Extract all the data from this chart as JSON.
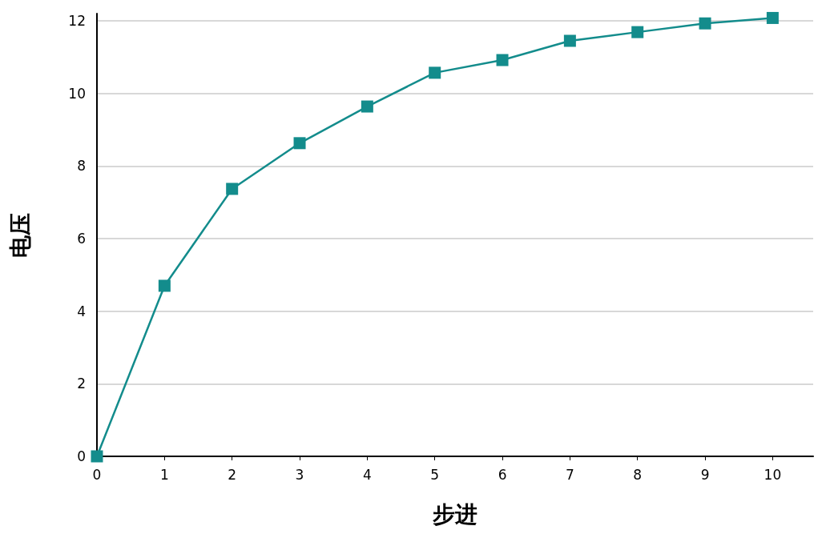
{
  "chart_data": {
    "type": "line",
    "xlabel": "步进",
    "ylabel": "电压",
    "x": [
      0,
      1,
      2,
      3,
      4,
      5,
      6,
      7,
      8,
      9,
      10
    ],
    "series": [
      {
        "color": "#138c8c",
        "values": [
          0,
          4.7,
          7.37,
          8.63,
          9.64,
          10.57,
          10.92,
          11.45,
          11.69,
          11.93,
          12.08
        ]
      }
    ],
    "xlim": [
      0,
      10.6
    ],
    "xticks": [
      0,
      1,
      2,
      3,
      4,
      5,
      6,
      7,
      8,
      9,
      10
    ],
    "ylim": [
      0,
      12.2
    ],
    "yticks": [
      0,
      2,
      4,
      6,
      8,
      10,
      12
    ],
    "grid": "y",
    "marker": "square",
    "line_style": "solid"
  }
}
